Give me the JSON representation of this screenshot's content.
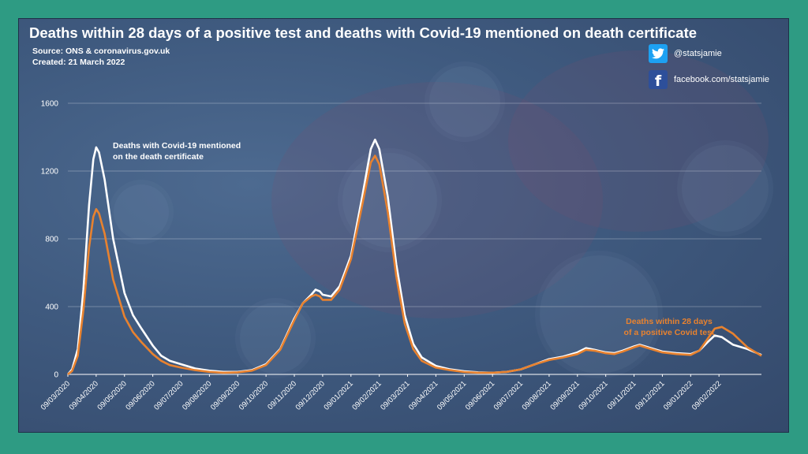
{
  "title": "Deaths within 28 days of a positive test and deaths with Covid-19 mentioned on death certificate",
  "source": "Source: ONS & coronavirus.gov.uk",
  "created": "Created: 21 March 2022",
  "social": {
    "twitter_handle": "@statsjamie",
    "facebook_handle": "facebook.com/statsjamie",
    "twitter_icon": "twitter-bird-icon",
    "facebook_icon": "facebook-f-icon"
  },
  "colors": {
    "frame": "#2e9b83",
    "white_series": "#ffffff",
    "orange_series": "#e8822f"
  },
  "chart_data": {
    "type": "line",
    "title": "Deaths within 28 days of a positive test and deaths with Covid-19 mentioned on death certificate",
    "xlabel": "",
    "ylabel": "",
    "ylim": [
      0,
      1600
    ],
    "yticks": [
      0,
      400,
      800,
      1200,
      1600
    ],
    "grid": true,
    "x_ticks": [
      "09/03/2020",
      "09/04/2020",
      "09/05/2020",
      "09/06/2020",
      "09/07/2020",
      "09/08/2020",
      "09/09/2020",
      "09/10/2020",
      "09/11/2020",
      "09/12/2020",
      "09/01/2021",
      "09/02/2021",
      "09/03/2021",
      "09/04/2021",
      "09/05/2021",
      "09/06/2021",
      "09/07/2021",
      "09/08/2021",
      "09/09/2021",
      "09/10/2021",
      "09/11/2021",
      "09/12/2021",
      "09/01/2022",
      "09/02/2022"
    ],
    "x_unit": "months since 09/03/2020",
    "series": [
      {
        "name": "Deaths with Covid-19 mentioned on the death certificate",
        "color": "#ffffff",
        "points": [
          [
            0,
            0
          ],
          [
            0.15,
            30
          ],
          [
            0.35,
            150
          ],
          [
            0.55,
            500
          ],
          [
            0.75,
            1000
          ],
          [
            0.9,
            1270
          ],
          [
            1.0,
            1340
          ],
          [
            1.1,
            1310
          ],
          [
            1.3,
            1150
          ],
          [
            1.6,
            800
          ],
          [
            2.0,
            480
          ],
          [
            2.3,
            350
          ],
          [
            2.6,
            270
          ],
          [
            3.0,
            170
          ],
          [
            3.3,
            110
          ],
          [
            3.6,
            80
          ],
          [
            4.0,
            60
          ],
          [
            4.5,
            35
          ],
          [
            5.0,
            22
          ],
          [
            5.5,
            15
          ],
          [
            6.0,
            15
          ],
          [
            6.5,
            25
          ],
          [
            7.0,
            60
          ],
          [
            7.5,
            150
          ],
          [
            8.0,
            330
          ],
          [
            8.3,
            420
          ],
          [
            8.6,
            470
          ],
          [
            8.75,
            500
          ],
          [
            8.9,
            490
          ],
          [
            9.0,
            470
          ],
          [
            9.3,
            460
          ],
          [
            9.6,
            520
          ],
          [
            10.0,
            700
          ],
          [
            10.4,
            1050
          ],
          [
            10.7,
            1330
          ],
          [
            10.85,
            1385
          ],
          [
            11.0,
            1330
          ],
          [
            11.3,
            1050
          ],
          [
            11.6,
            650
          ],
          [
            11.9,
            350
          ],
          [
            12.2,
            180
          ],
          [
            12.5,
            100
          ],
          [
            13.0,
            50
          ],
          [
            13.5,
            30
          ],
          [
            14.0,
            18
          ],
          [
            14.5,
            12
          ],
          [
            15.0,
            10
          ],
          [
            15.5,
            15
          ],
          [
            16.0,
            30
          ],
          [
            16.5,
            60
          ],
          [
            17.0,
            90
          ],
          [
            17.5,
            105
          ],
          [
            18.0,
            130
          ],
          [
            18.3,
            155
          ],
          [
            18.6,
            145
          ],
          [
            19.0,
            130
          ],
          [
            19.3,
            125
          ],
          [
            19.6,
            140
          ],
          [
            20.0,
            165
          ],
          [
            20.2,
            175
          ],
          [
            20.5,
            160
          ],
          [
            21.0,
            135
          ],
          [
            21.5,
            125
          ],
          [
            22.0,
            120
          ],
          [
            22.3,
            140
          ],
          [
            22.6,
            190
          ],
          [
            22.85,
            230
          ],
          [
            23.1,
            220
          ],
          [
            23.5,
            175
          ],
          [
            24.0,
            150
          ],
          [
            24.5,
            115
          ]
        ]
      },
      {
        "name": "Deaths within 28 days of a positive Covid test",
        "color": "#e8822f",
        "points": [
          [
            0,
            0
          ],
          [
            0.15,
            20
          ],
          [
            0.35,
            110
          ],
          [
            0.55,
            380
          ],
          [
            0.75,
            750
          ],
          [
            0.9,
            930
          ],
          [
            1.0,
            975
          ],
          [
            1.1,
            950
          ],
          [
            1.3,
            830
          ],
          [
            1.6,
            560
          ],
          [
            2.0,
            340
          ],
          [
            2.3,
            250
          ],
          [
            2.6,
            190
          ],
          [
            3.0,
            120
          ],
          [
            3.3,
            80
          ],
          [
            3.6,
            55
          ],
          [
            4.0,
            40
          ],
          [
            4.5,
            25
          ],
          [
            5.0,
            15
          ],
          [
            5.5,
            10
          ],
          [
            6.0,
            12
          ],
          [
            6.5,
            22
          ],
          [
            7.0,
            55
          ],
          [
            7.5,
            145
          ],
          [
            8.0,
            320
          ],
          [
            8.3,
            420
          ],
          [
            8.6,
            460
          ],
          [
            8.75,
            470
          ],
          [
            8.9,
            460
          ],
          [
            9.0,
            440
          ],
          [
            9.3,
            440
          ],
          [
            9.6,
            500
          ],
          [
            10.0,
            680
          ],
          [
            10.4,
            1000
          ],
          [
            10.7,
            1250
          ],
          [
            10.85,
            1290
          ],
          [
            11.0,
            1240
          ],
          [
            11.3,
            960
          ],
          [
            11.6,
            580
          ],
          [
            11.9,
            300
          ],
          [
            12.2,
            150
          ],
          [
            12.5,
            80
          ],
          [
            13.0,
            40
          ],
          [
            13.5,
            25
          ],
          [
            14.0,
            14
          ],
          [
            14.5,
            10
          ],
          [
            15.0,
            10
          ],
          [
            15.5,
            15
          ],
          [
            16.0,
            30
          ],
          [
            16.5,
            60
          ],
          [
            17.0,
            85
          ],
          [
            17.5,
            100
          ],
          [
            18.0,
            120
          ],
          [
            18.3,
            145
          ],
          [
            18.6,
            140
          ],
          [
            19.0,
            125
          ],
          [
            19.3,
            120
          ],
          [
            19.6,
            135
          ],
          [
            20.0,
            160
          ],
          [
            20.2,
            170
          ],
          [
            20.5,
            155
          ],
          [
            21.0,
            130
          ],
          [
            21.5,
            120
          ],
          [
            22.0,
            115
          ],
          [
            22.3,
            140
          ],
          [
            22.6,
            210
          ],
          [
            22.85,
            270
          ],
          [
            23.1,
            280
          ],
          [
            23.5,
            240
          ],
          [
            24.0,
            160
          ],
          [
            24.5,
            110
          ]
        ]
      }
    ],
    "annotations": {
      "white_line1": "Deaths with Covid-19 mentioned",
      "white_line2": "on the death certificate",
      "orange_line1": "Deaths within 28  days",
      "orange_line2": "of a positive Covid test"
    }
  }
}
